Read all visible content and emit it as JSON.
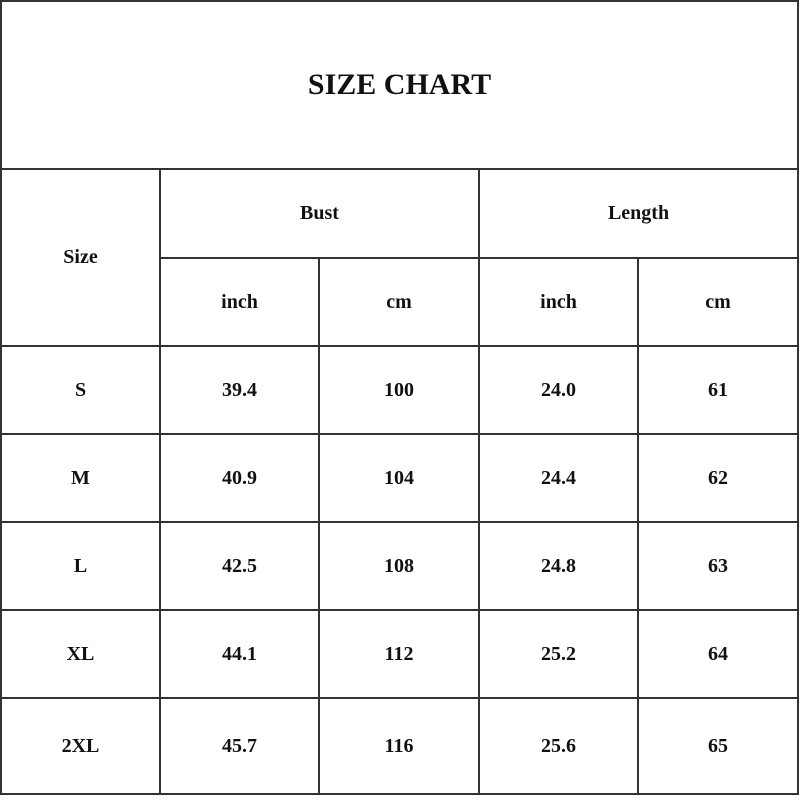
{
  "title": "SIZE CHART",
  "headers": {
    "size": "Size",
    "bust": "Bust",
    "length": "Length",
    "units": [
      "inch",
      "cm",
      "inch",
      "cm"
    ]
  },
  "rows": [
    {
      "size": "S",
      "bust_inch": "39.4",
      "bust_cm": "100",
      "length_inch": "24.0",
      "length_cm": "61"
    },
    {
      "size": "M",
      "bust_inch": "40.9",
      "bust_cm": "104",
      "length_inch": "24.4",
      "length_cm": "62"
    },
    {
      "size": "L",
      "bust_inch": "42.5",
      "bust_cm": "108",
      "length_inch": "24.8",
      "length_cm": "63"
    },
    {
      "size": "XL",
      "bust_inch": "44.1",
      "bust_cm": "112",
      "length_inch": "25.2",
      "length_cm": "64"
    },
    {
      "size": "2XL",
      "bust_inch": "45.7",
      "bust_cm": "116",
      "length_inch": "25.6",
      "length_cm": "65"
    }
  ]
}
